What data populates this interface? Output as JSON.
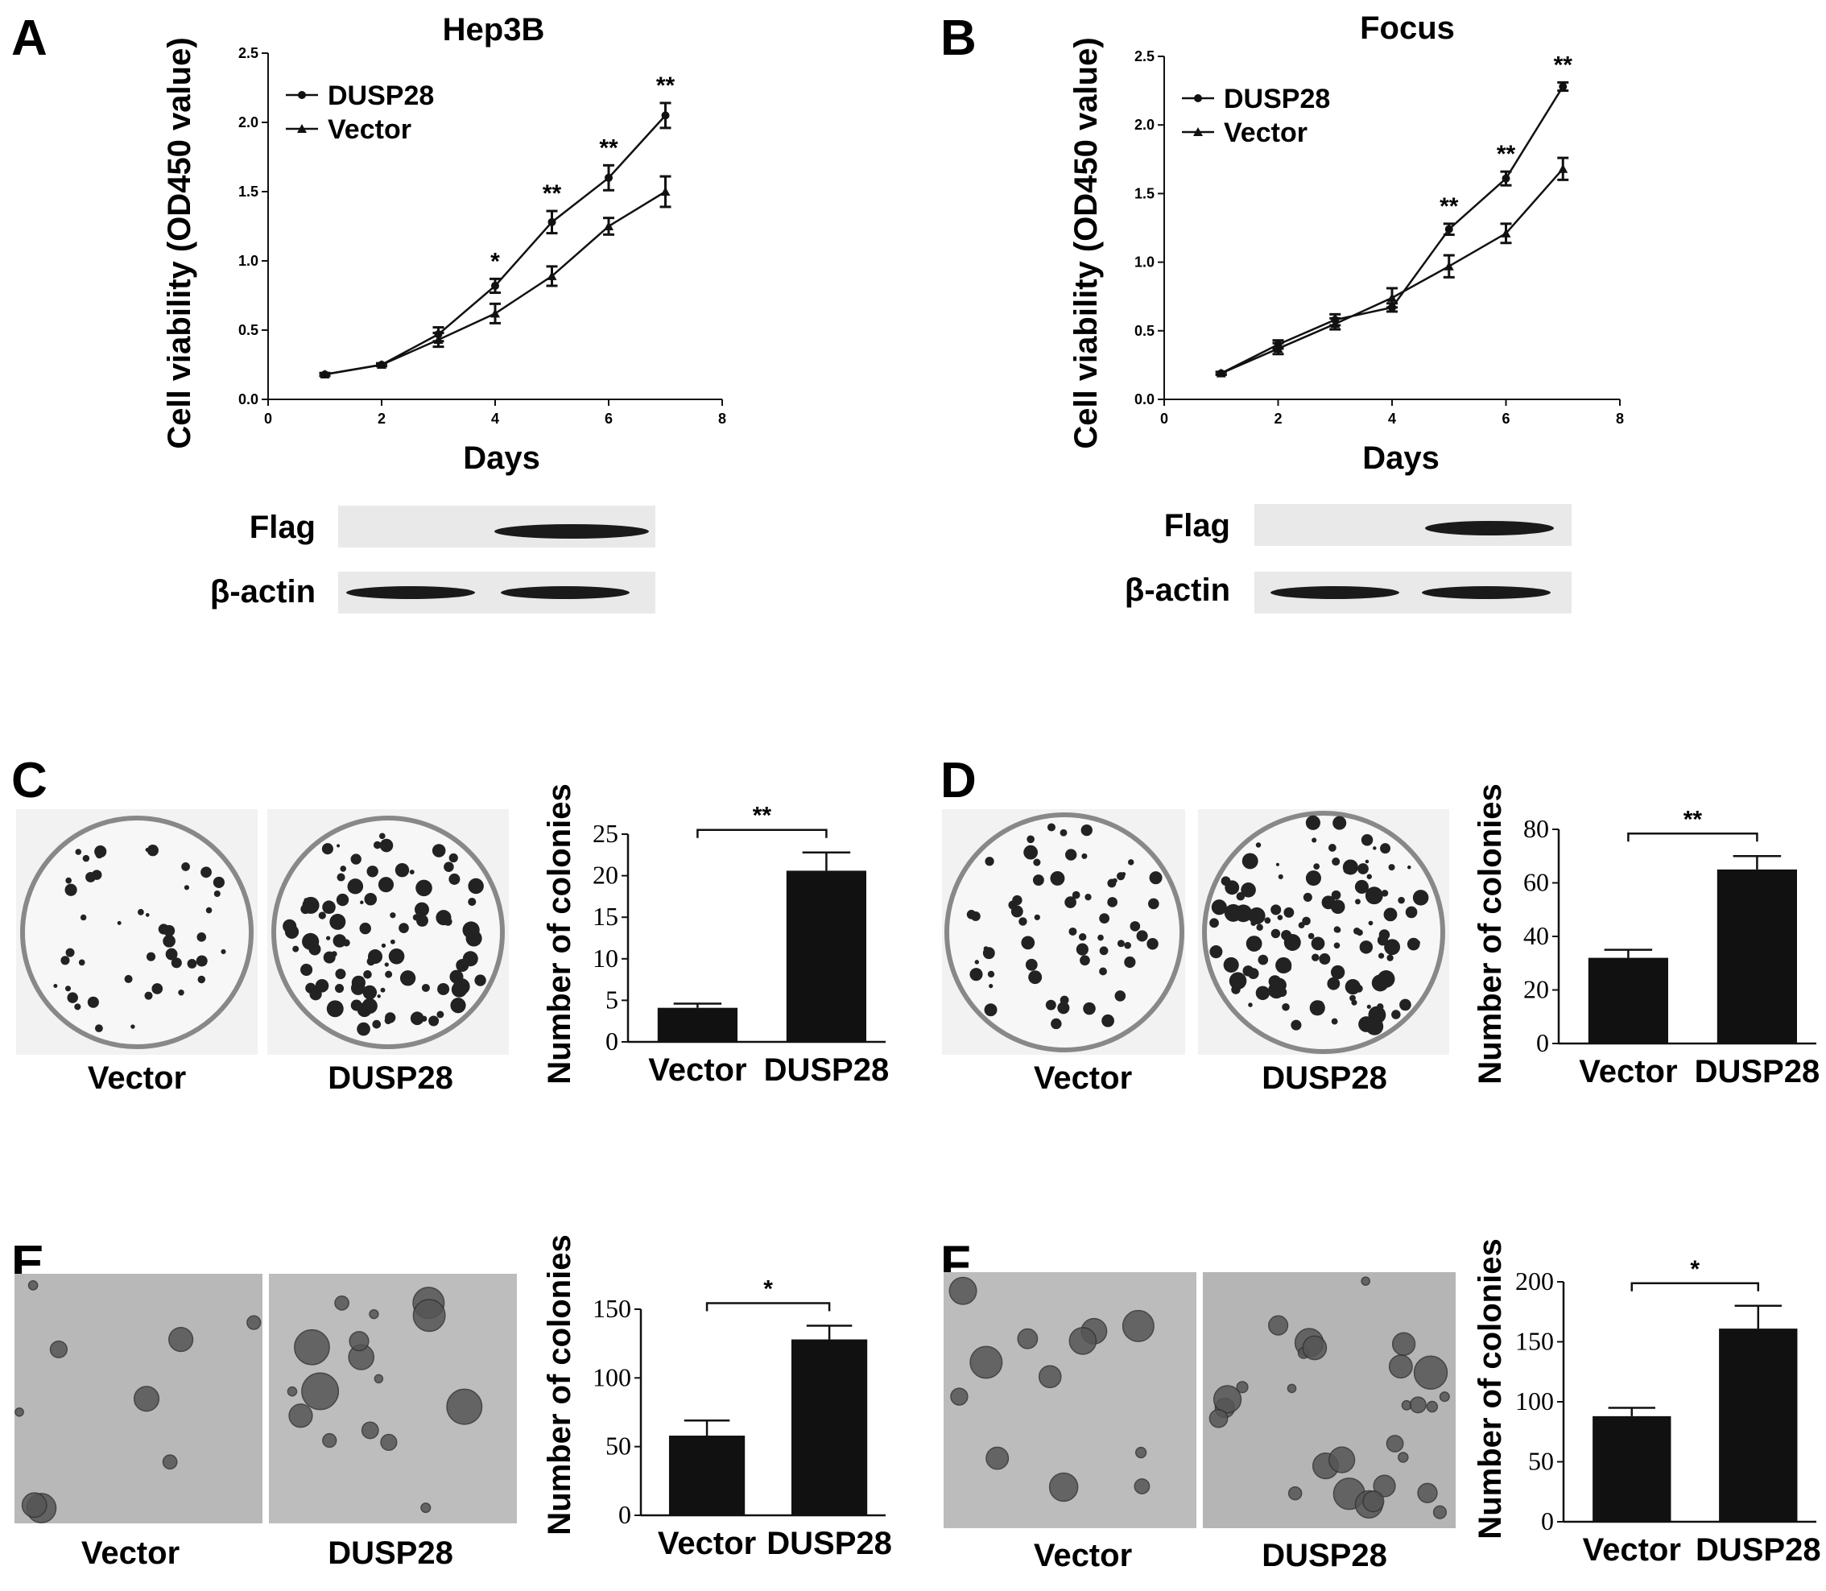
{
  "panels": {
    "A": "A",
    "B": "B",
    "C": "C",
    "D": "D",
    "E": "E",
    "F": "F"
  },
  "chart_data": [
    {
      "id": "A",
      "type": "line",
      "title": "Hep3B",
      "xlabel": "Days",
      "ylabel": "Cell viability (OD450 value)",
      "xlim": [
        0,
        8
      ],
      "ylim": [
        0,
        2.5
      ],
      "xticks": [
        "0",
        "2",
        "4",
        "6",
        "8"
      ],
      "yticks": [
        "0.0",
        "0.5",
        "1.0",
        "1.5",
        "2.0",
        "2.5"
      ],
      "x": [
        1,
        2,
        3,
        4,
        5,
        6,
        7
      ],
      "series": [
        {
          "name": "DUSP28",
          "marker": "circle",
          "values": [
            0.18,
            0.25,
            0.47,
            0.82,
            1.28,
            1.6,
            2.05
          ],
          "errors": [
            0.01,
            0.01,
            0.05,
            0.05,
            0.08,
            0.09,
            0.09
          ]
        },
        {
          "name": "Vector",
          "marker": "triangle",
          "values": [
            0.18,
            0.25,
            0.43,
            0.62,
            0.89,
            1.25,
            1.5
          ],
          "errors": [
            0.01,
            0.01,
            0.05,
            0.07,
            0.07,
            0.06,
            0.11
          ]
        }
      ],
      "significance": [
        "",
        "",
        "",
        "*",
        "**",
        "**",
        "**"
      ],
      "legend_position": "top-left",
      "grid": false
    },
    {
      "id": "B",
      "type": "line",
      "title": "Focus",
      "xlabel": "Days",
      "ylabel": "Cell viability (OD450 value)",
      "xlim": [
        0,
        8
      ],
      "ylim": [
        0,
        2.5
      ],
      "xticks": [
        "0",
        "2",
        "4",
        "6",
        "8"
      ],
      "yticks": [
        "0.0",
        "0.5",
        "1.0",
        "1.5",
        "2.0",
        "2.5"
      ],
      "x": [
        1,
        2,
        3,
        4,
        5,
        6,
        7
      ],
      "series": [
        {
          "name": "DUSP28",
          "marker": "circle",
          "values": [
            0.19,
            0.4,
            0.58,
            0.67,
            1.24,
            1.61,
            2.28
          ],
          "errors": [
            0.01,
            0.03,
            0.04,
            0.03,
            0.04,
            0.05,
            0.03
          ]
        },
        {
          "name": "Vector",
          "marker": "triangle",
          "values": [
            0.19,
            0.37,
            0.55,
            0.74,
            0.97,
            1.21,
            1.68
          ],
          "errors": [
            0.01,
            0.04,
            0.04,
            0.07,
            0.08,
            0.07,
            0.08
          ]
        }
      ],
      "significance": [
        "",
        "",
        "",
        "",
        "**",
        "**",
        "**"
      ],
      "legend_position": "top-left",
      "grid": false
    },
    {
      "id": "C",
      "type": "bar",
      "categories": [
        "Vector",
        "DUSP28"
      ],
      "values": [
        4.1,
        20.6
      ],
      "errors": [
        0.5,
        2.2
      ],
      "ylabel": "Number of colonies",
      "ylim": [
        0,
        25
      ],
      "yticks": [
        "0",
        "5",
        "10",
        "15",
        "20",
        "25"
      ],
      "significance": "**"
    },
    {
      "id": "D",
      "type": "bar",
      "categories": [
        "Vector",
        "DUSP28"
      ],
      "values": [
        32,
        65
      ],
      "errors": [
        3,
        5
      ],
      "ylabel": "Number of colonies",
      "ylim": [
        0,
        80
      ],
      "yticks": [
        "0",
        "20",
        "40",
        "60",
        "80"
      ],
      "significance": "**"
    },
    {
      "id": "E",
      "type": "bar",
      "categories": [
        "Vector",
        "DUSP28"
      ],
      "values": [
        58,
        128
      ],
      "errors": [
        11,
        10
      ],
      "ylabel": "Number of colonies",
      "ylim": [
        0,
        150
      ],
      "yticks": [
        "0",
        "50",
        "100",
        "150"
      ],
      "significance": "*"
    },
    {
      "id": "F",
      "type": "bar",
      "categories": [
        "Vector",
        "DUSP28"
      ],
      "values": [
        88,
        161
      ],
      "errors": [
        7,
        19
      ],
      "ylabel": "Number of colonies",
      "ylim": [
        0,
        200
      ],
      "yticks": [
        "0",
        "50",
        "100",
        "150",
        "200"
      ],
      "significance": "*"
    }
  ],
  "blots": {
    "A": {
      "rows": [
        "Flag",
        "β-actin"
      ]
    },
    "B": {
      "rows": [
        "Flag",
        "β-actin"
      ]
    }
  },
  "image_captions": {
    "C": [
      "Vector",
      "DUSP28"
    ],
    "D": [
      "Vector",
      "DUSP28"
    ],
    "E": [
      "Vector",
      "DUSP28"
    ],
    "F": [
      "Vector",
      "DUSP28"
    ]
  },
  "colors": {
    "ink": "#111111",
    "plate_bg": "#f2f2f2",
    "micro_bg": "#b8b8b8"
  }
}
